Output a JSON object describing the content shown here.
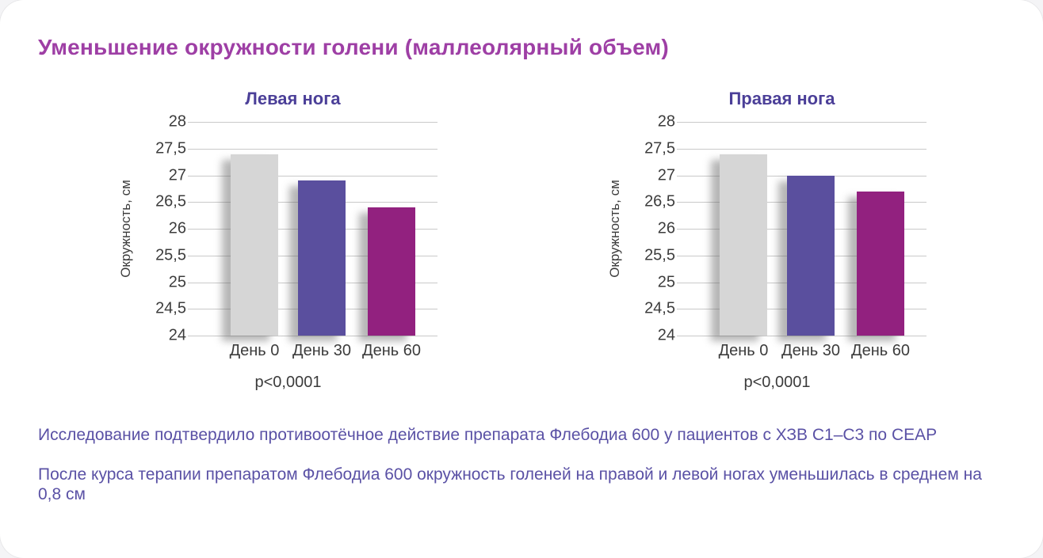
{
  "page": {
    "title": "Уменьшение окружности голени (маллеолярный объем)"
  },
  "colors": {
    "main_title": "#9e3fa5",
    "chart_title": "#4b3f98",
    "body_text": "#5a51a5",
    "axis_text": "#3c3c3c",
    "gridline": "#c9c9c9",
    "bar_day0": "#d6d6d6",
    "bar_day30": "#5a4f9e",
    "bar_day60": "#92217f"
  },
  "chart_data": [
    {
      "type": "bar",
      "title": "Левая нога",
      "ylabel": "Окружность, см",
      "xlabel": "",
      "categories": [
        "День 0",
        "День 30",
        "День 60"
      ],
      "values": [
        27.4,
        26.9,
        26.4
      ],
      "bar_colors": [
        "#d6d6d6",
        "#5a4f9e",
        "#92217f"
      ],
      "ylim": [
        24,
        28
      ],
      "ytick_step": 0.5,
      "ytick_labels": [
        "28",
        "27,5",
        "27",
        "26,5",
        "26",
        "25,5",
        "25",
        "24,5",
        "24"
      ],
      "grid": "horizontal",
      "legend": "none",
      "annotation": "p<0,0001"
    },
    {
      "type": "bar",
      "title": "Правая нога",
      "ylabel": "Окружность, см",
      "xlabel": "",
      "categories": [
        "День 0",
        "День 30",
        "День 60"
      ],
      "values": [
        27.4,
        27.0,
        26.7
      ],
      "bar_colors": [
        "#d6d6d6",
        "#5a4f9e",
        "#92217f"
      ],
      "ylim": [
        24,
        28
      ],
      "ytick_step": 0.5,
      "ytick_labels": [
        "28",
        "27,5",
        "27",
        "26,5",
        "26",
        "25,5",
        "25",
        "24,5",
        "24"
      ],
      "grid": "horizontal",
      "legend": "none",
      "annotation": "p<0,0001"
    }
  ],
  "summary": {
    "paragraph1": "Исследование подтвердило противоотёчное действие препарата Флебодиа 600 у пациентов с ХЗВ С1–С3 по CEAP",
    "paragraph2": "После курса терапии препаратом Флебодиа 600 окружность голеней на правой и левой ногах уменьшилась в среднем на 0,8 см"
  }
}
